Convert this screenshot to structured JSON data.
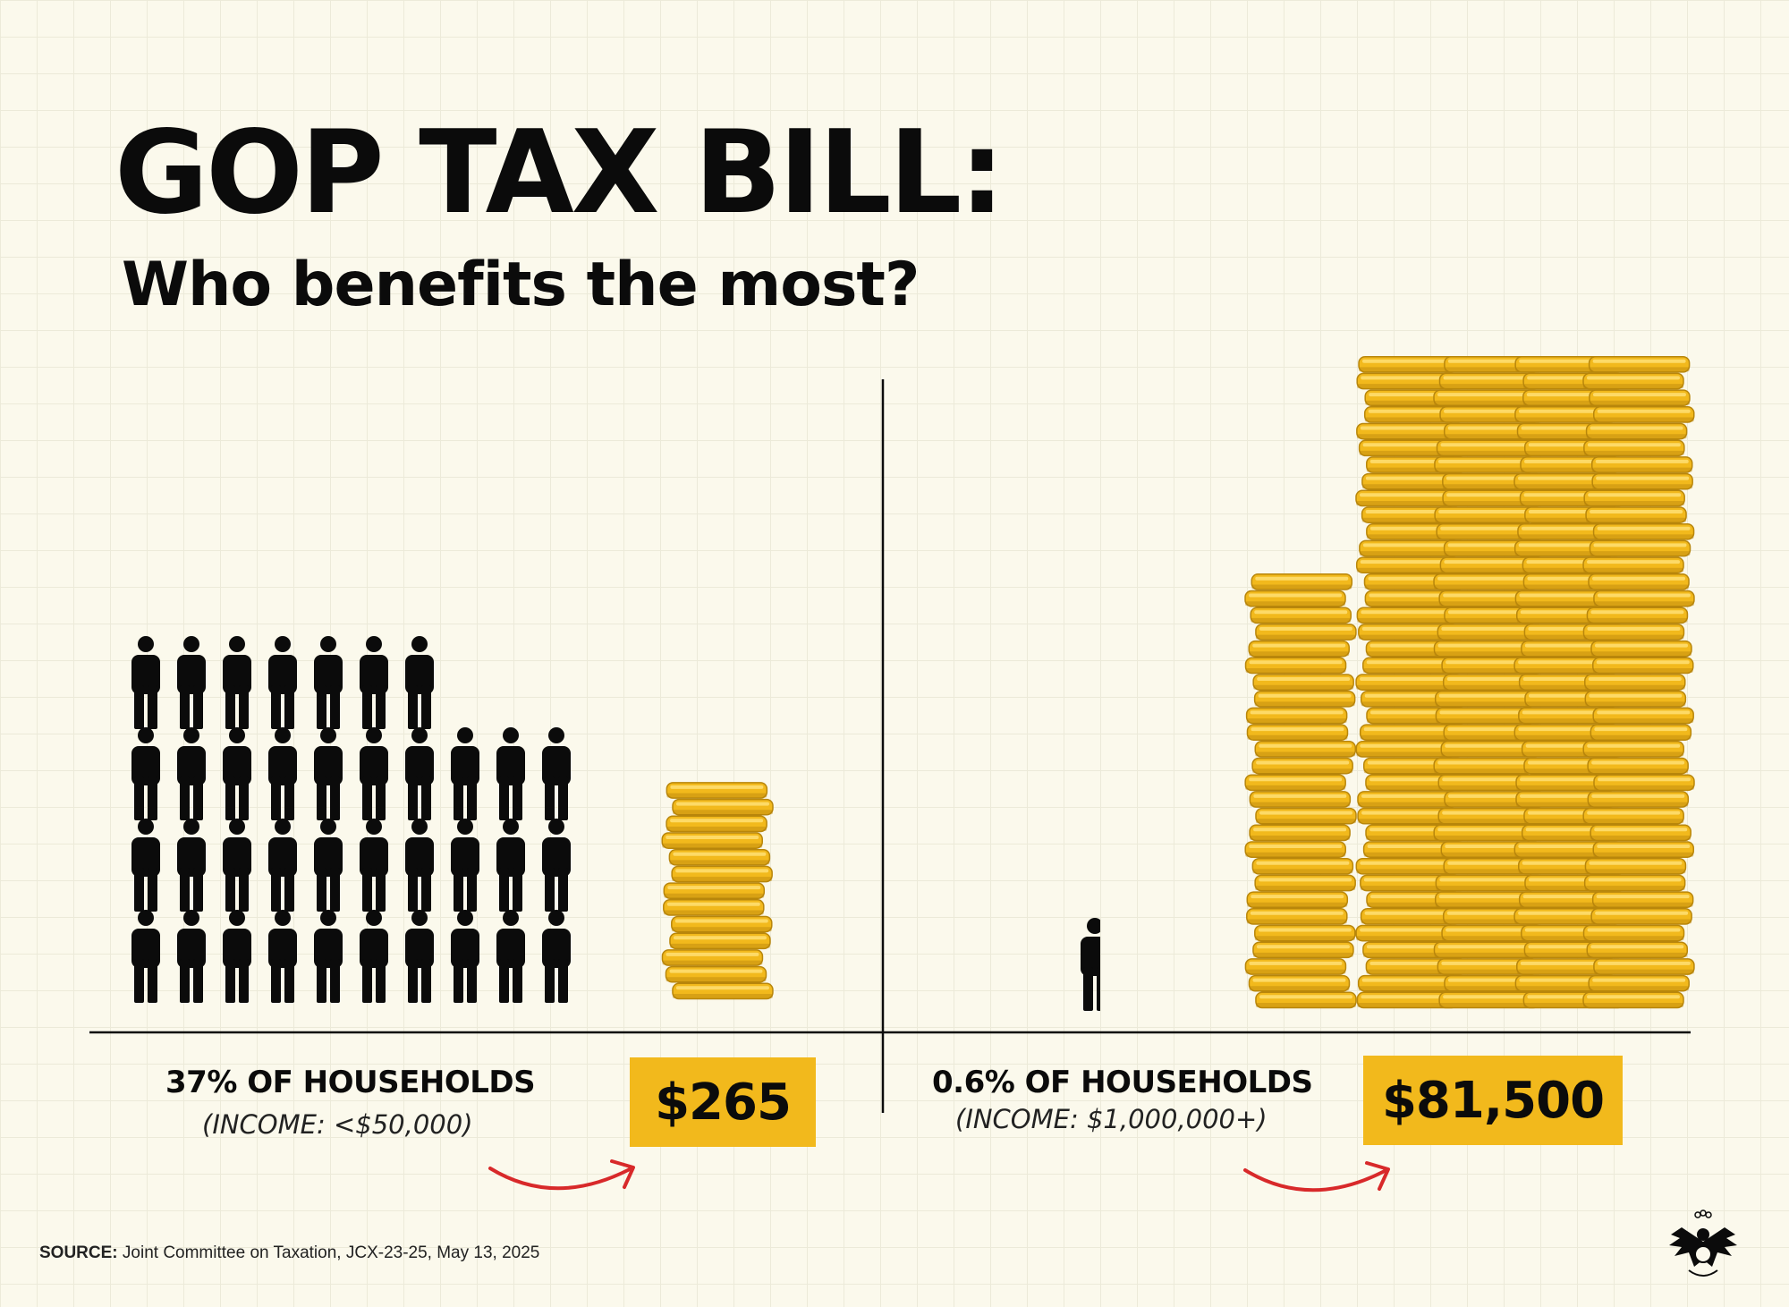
{
  "title": "GOP TAX BILL:",
  "subtitle": "Who benefits the most?",
  "colors": {
    "coin": "#f2b91c",
    "coin_dark": "#b8860b",
    "box": "#f2b91c",
    "arrow": "#d8292a",
    "figure": "#0b0b0b"
  },
  "chart_data": {
    "type": "pictograph",
    "groups": [
      {
        "name": "low-income",
        "label": "37% OF HOUSEHOLDS",
        "income": "(INCOME: <$50,000)",
        "households_pct": 37,
        "benefit": 265,
        "value_label": "$265",
        "people_icons": 37,
        "people_rows": [
          7,
          10,
          10,
          10
        ],
        "coin_stacks": [
          13
        ]
      },
      {
        "name": "millionaires",
        "label": "0.6% OF HOUSEHOLDS",
        "income": "(INCOME: $1,000,000+)",
        "households_pct": 0.6,
        "benefit": 81500,
        "value_label": "$81,500",
        "people_icons": 0.6,
        "people_rows": [
          0.6
        ],
        "coin_stacks": [
          26,
          39,
          39,
          39,
          39
        ]
      }
    ]
  },
  "source": {
    "label": "SOURCE:",
    "text": "Joint Committee on Taxation, JCX-23-25, May 13, 2025"
  },
  "seal_icon": "eagle-seal-icon"
}
